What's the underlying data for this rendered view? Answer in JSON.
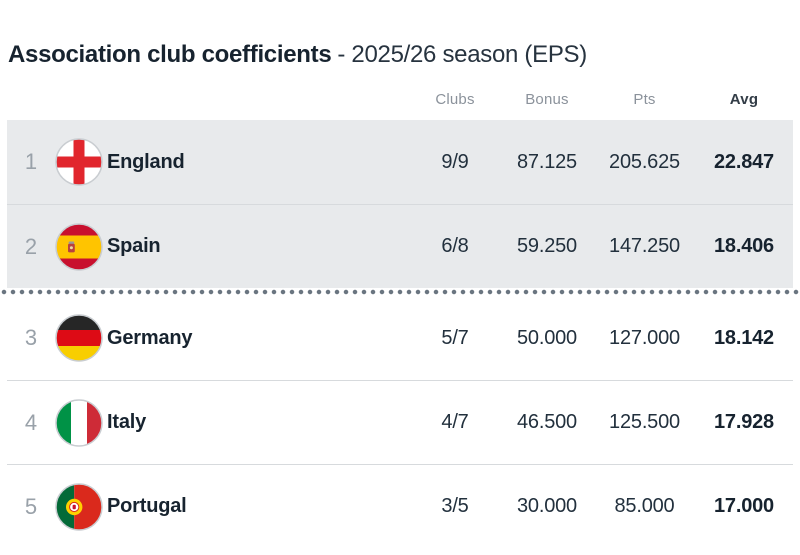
{
  "title": {
    "main": "Association club coefficients",
    "suffix": "- 2025/26 season (EPS)"
  },
  "table": {
    "columns": [
      {
        "key": "clubs",
        "label": "Clubs",
        "emphasis": false
      },
      {
        "key": "bonus",
        "label": "Bonus",
        "emphasis": false
      },
      {
        "key": "pts",
        "label": "Pts",
        "emphasis": false
      },
      {
        "key": "avg",
        "label": "Avg",
        "emphasis": true
      }
    ],
    "rows": [
      {
        "rank": "1",
        "country": "England",
        "flag": "england",
        "clubs": "9/9",
        "bonus": "87.125",
        "pts": "205.625",
        "avg": "22.847",
        "highlighted": true,
        "cutoff_after": false
      },
      {
        "rank": "2",
        "country": "Spain",
        "flag": "spain",
        "clubs": "6/8",
        "bonus": "59.250",
        "pts": "147.250",
        "avg": "18.406",
        "highlighted": true,
        "cutoff_after": true
      },
      {
        "rank": "3",
        "country": "Germany",
        "flag": "germany",
        "clubs": "5/7",
        "bonus": "50.000",
        "pts": "127.000",
        "avg": "18.142",
        "highlighted": false,
        "cutoff_after": false
      },
      {
        "rank": "4",
        "country": "Italy",
        "flag": "italy",
        "clubs": "4/7",
        "bonus": "46.500",
        "pts": "125.500",
        "avg": "17.928",
        "highlighted": false,
        "cutoff_after": false
      },
      {
        "rank": "5",
        "country": "Portugal",
        "flag": "portugal",
        "clubs": "3/5",
        "bonus": "30.000",
        "pts": "85.000",
        "avg": "17.000",
        "highlighted": false,
        "cutoff_after": false
      }
    ]
  },
  "colors": {
    "highlight_row_bg": "#e8eaec",
    "header_text": "#8b929b",
    "dark_text": "#17232f",
    "rank_text": "#99a1a9",
    "row_divider": "#d7dadd",
    "cutoff_dots": "#6a7580"
  }
}
